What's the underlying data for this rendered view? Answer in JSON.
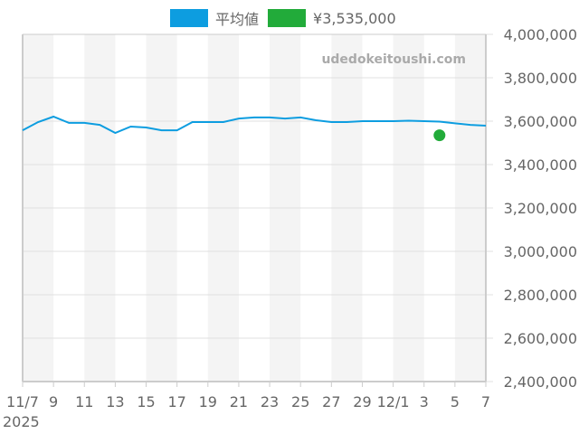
{
  "legend": {
    "items": [
      {
        "label": "平均値",
        "color": "#0d9de0"
      },
      {
        "label": "¥3,535,000",
        "color": "#22ab3a"
      }
    ]
  },
  "watermark": "udedokeitoushi.com",
  "chart_data": {
    "type": "line",
    "title": "",
    "xlabel": "",
    "ylabel": "",
    "ylim": [
      2400000,
      4000000
    ],
    "y_ticks": [
      "2,400,000",
      "2,600,000",
      "2,800,000",
      "3,000,000",
      "3,200,000",
      "3,400,000",
      "3,600,000",
      "3,800,000",
      "4,000,000"
    ],
    "x_tick_labels": [
      "11/7",
      "9",
      "11",
      "13",
      "15",
      "17",
      "19",
      "21",
      "23",
      "25",
      "27",
      "29",
      "12/1",
      "3",
      "5",
      "7"
    ],
    "x_year_label": "2025",
    "grid": true,
    "legend_position": "top",
    "x": [
      "11/7",
      "11/8",
      "11/9",
      "11/10",
      "11/11",
      "11/12",
      "11/13",
      "11/14",
      "11/15",
      "11/16",
      "11/17",
      "11/18",
      "11/19",
      "11/20",
      "11/21",
      "11/22",
      "11/23",
      "11/24",
      "11/25",
      "11/26",
      "11/27",
      "11/28",
      "11/29",
      "11/30",
      "12/1",
      "12/2",
      "12/3",
      "12/4",
      "12/5",
      "12/6",
      "12/7"
    ],
    "series": [
      {
        "name": "平均値",
        "color": "#0d9de0",
        "values": [
          3558000,
          3596000,
          3621000,
          3592000,
          3592000,
          3583000,
          3546000,
          3575000,
          3571000,
          3558000,
          3558000,
          3596000,
          3596000,
          3596000,
          3612000,
          3617000,
          3617000,
          3612000,
          3617000,
          3604000,
          3596000,
          3596000,
          3600000,
          3600000,
          3600000,
          3602000,
          3600000,
          3598000,
          3590000,
          3583000,
          3579000
        ]
      },
      {
        "name": "¥3,535,000",
        "color": "#22ab3a",
        "type": "scatter",
        "points": [
          {
            "x": "12/4",
            "y": 3535000
          }
        ]
      }
    ]
  }
}
